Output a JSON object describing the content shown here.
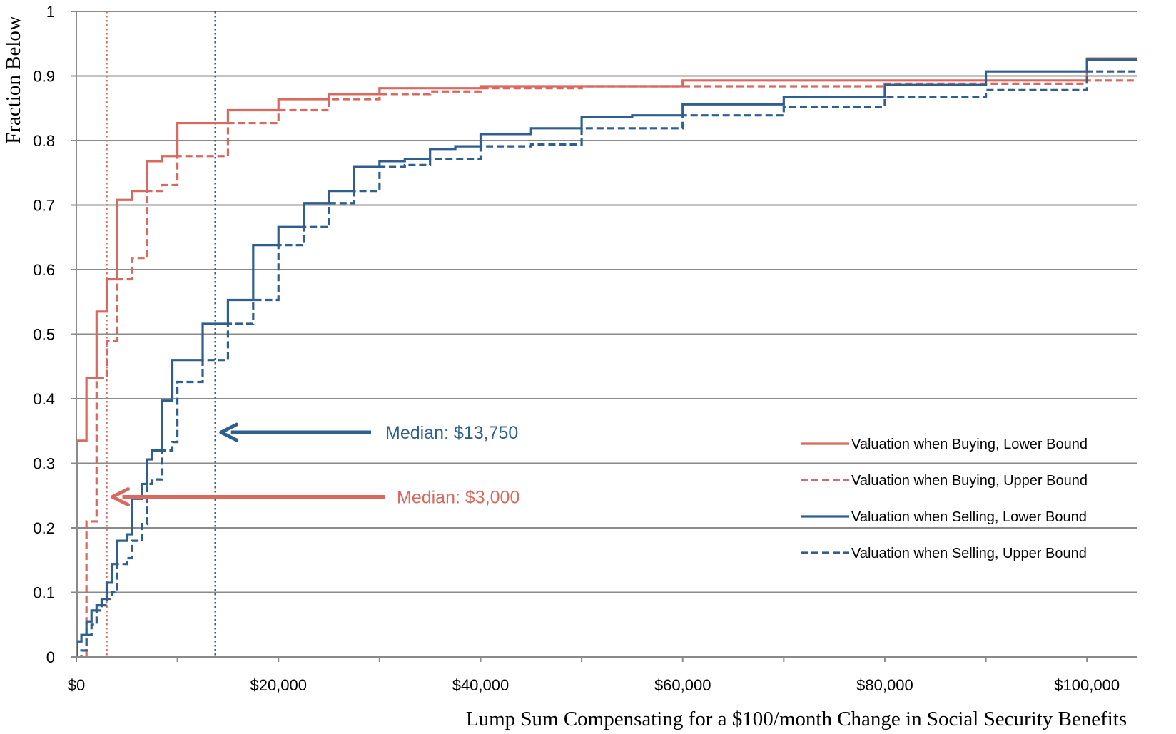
{
  "chart_data": {
    "type": "line",
    "title": "",
    "xlabel": "Lump Sum Compensating for a $100/month Change in Social Security Benefits",
    "ylabel": "Fraction Below",
    "xlim": [
      0,
      105000
    ],
    "ylim": [
      0,
      1
    ],
    "grid": true,
    "legend_placement": "bottom-right",
    "x_ticks": [
      {
        "value": 0,
        "label": "$0"
      },
      {
        "value": 20000,
        "label": "$20,000"
      },
      {
        "value": 40000,
        "label": "$40,000"
      },
      {
        "value": 60000,
        "label": "$60,000"
      },
      {
        "value": 80000,
        "label": "$80,000"
      },
      {
        "value": 100000,
        "label": "$100,000"
      }
    ],
    "y_ticks": [
      {
        "value": 0,
        "label": "0"
      },
      {
        "value": 0.1,
        "label": "0.1"
      },
      {
        "value": 0.2,
        "label": "0.2"
      },
      {
        "value": 0.3,
        "label": "0.3"
      },
      {
        "value": 0.4,
        "label": "0.4"
      },
      {
        "value": 0.5,
        "label": "0.5"
      },
      {
        "value": 0.6,
        "label": "0.6"
      },
      {
        "value": 0.7,
        "label": "0.7"
      },
      {
        "value": 0.8,
        "label": "0.8"
      },
      {
        "value": 0.9,
        "label": "0.9"
      },
      {
        "value": 1,
        "label": "1"
      }
    ],
    "series": [
      {
        "name": "Valuation when Buying, Lower Bound",
        "color": "#d9685f",
        "dash": "solid",
        "step": true,
        "points": [
          [
            0,
            0
          ],
          [
            50,
            0.335
          ],
          [
            1000,
            0.432
          ],
          [
            2000,
            0.535
          ],
          [
            3000,
            0.585
          ],
          [
            4000,
            0.708
          ],
          [
            5500,
            0.722
          ],
          [
            7000,
            0.768
          ],
          [
            8500,
            0.776
          ],
          [
            10000,
            0.827
          ],
          [
            15000,
            0.847
          ],
          [
            20000,
            0.864
          ],
          [
            25000,
            0.872
          ],
          [
            30000,
            0.881
          ],
          [
            40000,
            0.884
          ],
          [
            60000,
            0.893
          ],
          [
            100000,
            0.927
          ],
          [
            105000,
            0.927
          ]
        ]
      },
      {
        "name": "Valuation when Buying, Upper Bound",
        "color": "#d9685f",
        "dash": "dashed",
        "step": true,
        "points": [
          [
            0,
            0
          ],
          [
            1000,
            0.21
          ],
          [
            2000,
            0.432
          ],
          [
            3000,
            0.49
          ],
          [
            4000,
            0.585
          ],
          [
            5500,
            0.618
          ],
          [
            7000,
            0.722
          ],
          [
            8500,
            0.731
          ],
          [
            10000,
            0.776
          ],
          [
            15000,
            0.827
          ],
          [
            20000,
            0.847
          ],
          [
            25000,
            0.864
          ],
          [
            30000,
            0.872
          ],
          [
            35000,
            0.876
          ],
          [
            40000,
            0.881
          ],
          [
            50000,
            0.884
          ],
          [
            60000,
            0.884
          ],
          [
            80000,
            0.888
          ],
          [
            100000,
            0.893
          ],
          [
            105000,
            0.893
          ]
        ]
      },
      {
        "name": "Valuation when Selling, Lower Bound",
        "color": "#2e5f8e",
        "dash": "solid",
        "step": true,
        "points": [
          [
            0,
            0
          ],
          [
            50,
            0.024
          ],
          [
            500,
            0.034
          ],
          [
            1000,
            0.055
          ],
          [
            1500,
            0.072
          ],
          [
            2000,
            0.08
          ],
          [
            2500,
            0.09
          ],
          [
            3000,
            0.115
          ],
          [
            3500,
            0.144
          ],
          [
            4000,
            0.18
          ],
          [
            5000,
            0.19
          ],
          [
            5500,
            0.245
          ],
          [
            6500,
            0.268
          ],
          [
            7000,
            0.306
          ],
          [
            7500,
            0.32
          ],
          [
            8500,
            0.397
          ],
          [
            9500,
            0.46
          ],
          [
            12500,
            0.516
          ],
          [
            15000,
            0.553
          ],
          [
            17500,
            0.638
          ],
          [
            20000,
            0.666
          ],
          [
            22500,
            0.703
          ],
          [
            25000,
            0.722
          ],
          [
            27500,
            0.759
          ],
          [
            30000,
            0.768
          ],
          [
            32500,
            0.771
          ],
          [
            35000,
            0.787
          ],
          [
            37500,
            0.791
          ],
          [
            40000,
            0.81
          ],
          [
            45000,
            0.819
          ],
          [
            50000,
            0.836
          ],
          [
            55000,
            0.839
          ],
          [
            60000,
            0.856
          ],
          [
            70000,
            0.867
          ],
          [
            80000,
            0.886
          ],
          [
            90000,
            0.907
          ],
          [
            100000,
            0.925
          ],
          [
            105000,
            0.925
          ]
        ]
      },
      {
        "name": "Valuation when Selling, Upper Bound",
        "color": "#2e5f8e",
        "dash": "dashed",
        "step": true,
        "points": [
          [
            0,
            0
          ],
          [
            500,
            0.01
          ],
          [
            1000,
            0.034
          ],
          [
            1500,
            0.05
          ],
          [
            2000,
            0.072
          ],
          [
            2500,
            0.08
          ],
          [
            3000,
            0.09
          ],
          [
            3500,
            0.1
          ],
          [
            4000,
            0.144
          ],
          [
            5000,
            0.153
          ],
          [
            5500,
            0.18
          ],
          [
            6500,
            0.206
          ],
          [
            7000,
            0.268
          ],
          [
            7500,
            0.275
          ],
          [
            8500,
            0.32
          ],
          [
            9500,
            0.333
          ],
          [
            10000,
            0.426
          ],
          [
            12500,
            0.46
          ],
          [
            15000,
            0.516
          ],
          [
            17500,
            0.553
          ],
          [
            20000,
            0.638
          ],
          [
            22500,
            0.666
          ],
          [
            25000,
            0.703
          ],
          [
            27500,
            0.722
          ],
          [
            30000,
            0.759
          ],
          [
            32500,
            0.762
          ],
          [
            35000,
            0.771
          ],
          [
            40000,
            0.791
          ],
          [
            45000,
            0.794
          ],
          [
            50000,
            0.819
          ],
          [
            60000,
            0.839
          ],
          [
            70000,
            0.852
          ],
          [
            80000,
            0.867
          ],
          [
            90000,
            0.878
          ],
          [
            100000,
            0.907
          ],
          [
            105000,
            0.907
          ]
        ]
      }
    ],
    "reference_lines": [
      {
        "x": 3000,
        "color": "#d9685f",
        "style": "dotted"
      },
      {
        "x": 13750,
        "color": "#2e5f8e",
        "style": "dotted"
      }
    ],
    "annotations": [
      {
        "text": "Median: $13,750",
        "color": "#2e5f8e",
        "arrow_to_x": 13750,
        "arrow_y": 0.348
      },
      {
        "text": "Median: $3,000",
        "color": "#d9685f",
        "arrow_to_x": 3000,
        "arrow_y": 0.248
      }
    ]
  }
}
